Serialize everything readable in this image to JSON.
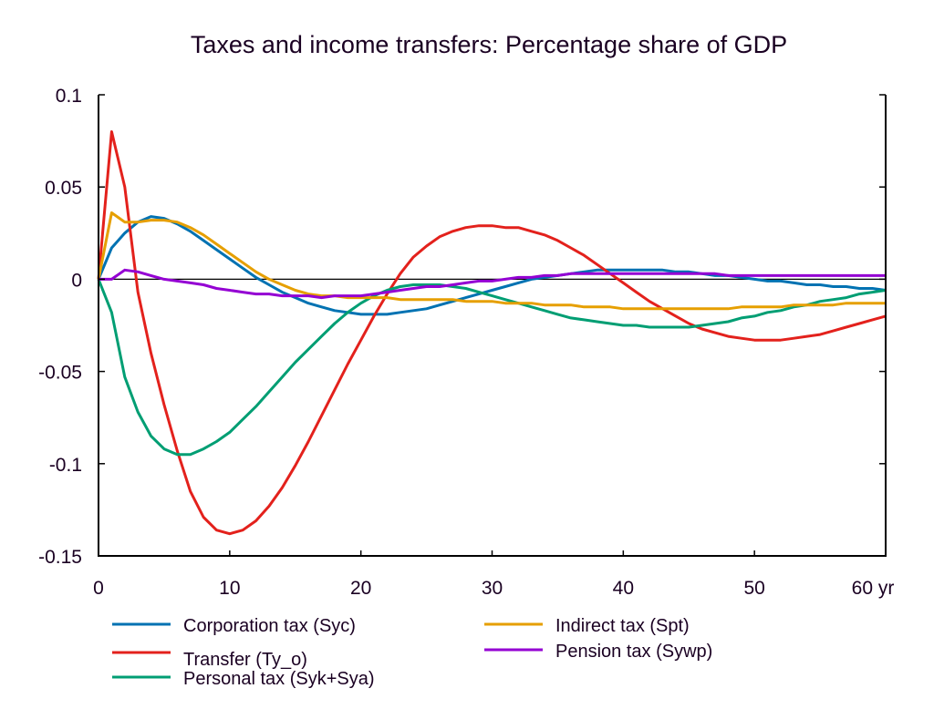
{
  "chart_data": {
    "type": "line",
    "title": "Taxes and income transfers: Percentage share of GDP",
    "xlabel": "yr",
    "ylabel": "",
    "xlim": [
      0,
      60
    ],
    "ylim": [
      -0.15,
      0.1
    ],
    "xticks": [
      0,
      10,
      20,
      30,
      40,
      50,
      60
    ],
    "xtick_labels": [
      "0",
      "10",
      "20",
      "30",
      "40",
      "50",
      "60 yr"
    ],
    "yticks": [
      0.1,
      0.05,
      0,
      -0.05,
      -0.1,
      -0.15
    ],
    "ytick_labels": [
      "0.1",
      "0.05",
      "0",
      "-0.05",
      "-0.1",
      "-0.15"
    ],
    "grid": false,
    "zero_line": true,
    "legend_position": "bottom",
    "x": [
      0,
      1,
      2,
      3,
      4,
      5,
      6,
      7,
      8,
      9,
      10,
      11,
      12,
      13,
      14,
      15,
      16,
      17,
      18,
      19,
      20,
      21,
      22,
      23,
      24,
      25,
      26,
      27,
      28,
      29,
      30,
      31,
      32,
      33,
      34,
      35,
      36,
      37,
      38,
      39,
      40,
      41,
      42,
      43,
      44,
      45,
      46,
      47,
      48,
      49,
      50,
      51,
      52,
      53,
      54,
      55,
      56,
      57,
      58,
      59,
      60
    ],
    "series": [
      {
        "name": "Corporation tax (Syc)",
        "color": "#0072b2",
        "values": [
          0,
          0.017,
          0.025,
          0.031,
          0.034,
          0.033,
          0.03,
          0.026,
          0.021,
          0.016,
          0.011,
          0.006,
          0.001,
          -0.003,
          -0.007,
          -0.01,
          -0.013,
          -0.015,
          -0.017,
          -0.018,
          -0.019,
          -0.019,
          -0.019,
          -0.018,
          -0.017,
          -0.016,
          -0.014,
          -0.012,
          -0.01,
          -0.008,
          -0.006,
          -0.004,
          -0.002,
          0.0,
          0.001,
          0.002,
          0.003,
          0.004,
          0.005,
          0.005,
          0.005,
          0.005,
          0.005,
          0.005,
          0.004,
          0.004,
          0.003,
          0.002,
          0.002,
          0.001,
          0.0,
          -0.001,
          -0.001,
          -0.002,
          -0.003,
          -0.003,
          -0.004,
          -0.004,
          -0.005,
          -0.005,
          -0.006
        ]
      },
      {
        "name": "Transfer (Ty_o)",
        "color": "#e3211c",
        "values": [
          0,
          0.08,
          0.05,
          -0.007,
          -0.04,
          -0.068,
          -0.093,
          -0.115,
          -0.129,
          -0.136,
          -0.138,
          -0.136,
          -0.131,
          -0.123,
          -0.113,
          -0.101,
          -0.088,
          -0.074,
          -0.06,
          -0.046,
          -0.033,
          -0.02,
          -0.008,
          0.003,
          0.012,
          0.018,
          0.023,
          0.026,
          0.028,
          0.029,
          0.029,
          0.028,
          0.028,
          0.026,
          0.024,
          0.021,
          0.017,
          0.013,
          0.008,
          0.003,
          -0.002,
          -0.007,
          -0.012,
          -0.016,
          -0.02,
          -0.024,
          -0.027,
          -0.029,
          -0.031,
          -0.032,
          -0.033,
          -0.033,
          -0.033,
          -0.032,
          -0.031,
          -0.03,
          -0.028,
          -0.026,
          -0.024,
          -0.022,
          -0.02
        ]
      },
      {
        "name": "Personal tax (Syk+Sya)",
        "color": "#009e73",
        "values": [
          0,
          -0.018,
          -0.053,
          -0.072,
          -0.085,
          -0.092,
          -0.095,
          -0.095,
          -0.092,
          -0.088,
          -0.083,
          -0.076,
          -0.069,
          -0.061,
          -0.053,
          -0.045,
          -0.038,
          -0.031,
          -0.024,
          -0.018,
          -0.013,
          -0.009,
          -0.006,
          -0.004,
          -0.003,
          -0.003,
          -0.003,
          -0.004,
          -0.005,
          -0.007,
          -0.009,
          -0.011,
          -0.013,
          -0.015,
          -0.017,
          -0.019,
          -0.021,
          -0.022,
          -0.023,
          -0.024,
          -0.025,
          -0.025,
          -0.026,
          -0.026,
          -0.026,
          -0.026,
          -0.025,
          -0.024,
          -0.023,
          -0.021,
          -0.02,
          -0.018,
          -0.017,
          -0.015,
          -0.014,
          -0.012,
          -0.011,
          -0.01,
          -0.008,
          -0.007,
          -0.006
        ]
      },
      {
        "name": "Indirect tax (Spt)",
        "color": "#e69f00",
        "values": [
          0,
          0.036,
          0.031,
          0.031,
          0.032,
          0.032,
          0.031,
          0.028,
          0.024,
          0.019,
          0.014,
          0.009,
          0.004,
          0.0,
          -0.003,
          -0.006,
          -0.008,
          -0.009,
          -0.009,
          -0.01,
          -0.01,
          -0.01,
          -0.01,
          -0.011,
          -0.011,
          -0.011,
          -0.011,
          -0.011,
          -0.012,
          -0.012,
          -0.012,
          -0.013,
          -0.013,
          -0.013,
          -0.014,
          -0.014,
          -0.014,
          -0.015,
          -0.015,
          -0.015,
          -0.016,
          -0.016,
          -0.016,
          -0.016,
          -0.016,
          -0.016,
          -0.016,
          -0.016,
          -0.016,
          -0.015,
          -0.015,
          -0.015,
          -0.015,
          -0.014,
          -0.014,
          -0.014,
          -0.014,
          -0.013,
          -0.013,
          -0.013,
          -0.013
        ]
      },
      {
        "name": "Pension tax (Sywp)",
        "color": "#9400d3",
        "values": [
          0,
          0.0,
          0.005,
          0.004,
          0.002,
          0.0,
          -0.001,
          -0.002,
          -0.003,
          -0.005,
          -0.006,
          -0.007,
          -0.008,
          -0.008,
          -0.009,
          -0.009,
          -0.009,
          -0.01,
          -0.009,
          -0.009,
          -0.009,
          -0.008,
          -0.007,
          -0.006,
          -0.005,
          -0.004,
          -0.004,
          -0.003,
          -0.002,
          -0.001,
          -0.001,
          0.0,
          0.001,
          0.001,
          0.002,
          0.002,
          0.003,
          0.003,
          0.003,
          0.003,
          0.003,
          0.003,
          0.003,
          0.003,
          0.003,
          0.003,
          0.003,
          0.003,
          0.002,
          0.002,
          0.002,
          0.002,
          0.002,
          0.002,
          0.002,
          0.002,
          0.002,
          0.002,
          0.002,
          0.002,
          0.002
        ]
      }
    ]
  }
}
